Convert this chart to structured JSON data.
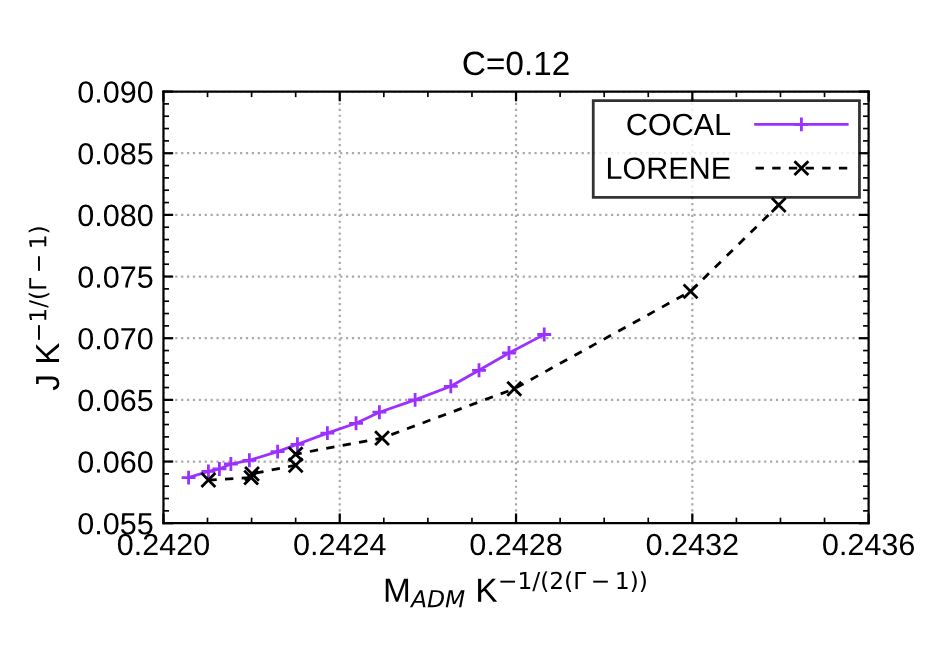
{
  "chart_data": {
    "type": "line",
    "title": "C=0.12",
    "xlabel": "M$_{ADM}$ K$^{−1/(2(Γ−1))}$",
    "ylabel": "J K$^{−1/(Γ−1)}$",
    "series": [
      {
        "name": "COCAL",
        "color": "#9b30ff",
        "marker": "plus",
        "line_style": "solid",
        "x": [
          0.242057,
          0.242102,
          0.242127,
          0.242153,
          0.242195,
          0.242259,
          0.242304,
          0.242372,
          0.242437,
          0.24249,
          0.242571,
          0.242652,
          0.242716,
          0.242784,
          0.242864
        ],
        "values": [
          0.0587,
          0.0592,
          0.0594,
          0.0598,
          0.0601,
          0.0608,
          0.0614,
          0.0623,
          0.0631,
          0.064,
          0.065,
          0.0661,
          0.0674,
          0.0688,
          0.0703
        ]
      },
      {
        "name": "LORENE",
        "color": "#000000",
        "marker": "cross",
        "line_style": "dashed",
        "x": [
          0.242102,
          0.242199,
          0.242201,
          0.2423,
          0.2423,
          0.242496,
          0.242796,
          0.243196,
          0.243396
        ],
        "values": [
          0.0585,
          0.0587,
          0.059,
          0.0597,
          0.0606,
          0.0619,
          0.0659,
          0.0738,
          0.0808
        ]
      }
    ],
    "xlim": [
      0.242,
      0.2436
    ],
    "xticks": [
      {
        "value": 0.242,
        "label": "0.2420"
      },
      0.2424,
      0.2428,
      0.2432,
      0.2436
    ],
    "ylim": [
      0.055,
      0.09
    ],
    "yticks": [
      0.055,
      {
        "value": 0.06,
        "label": "0.060"
      },
      0.065,
      {
        "value": 0.07,
        "label": "0.070"
      },
      0.075,
      {
        "value": 0.08,
        "label": "0.080"
      },
      0.085,
      {
        "value": 0.09,
        "label": "0.090"
      }
    ],
    "grid": true,
    "legend": "top right"
  }
}
